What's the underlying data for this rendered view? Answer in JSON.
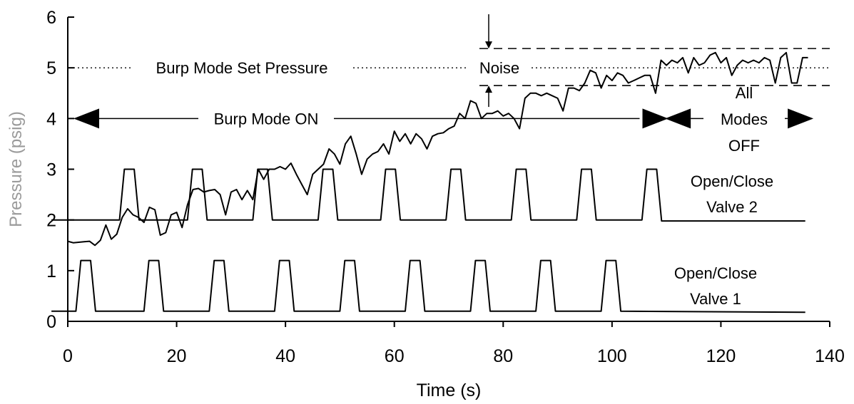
{
  "chart_data": {
    "type": "line",
    "title": "",
    "xlabel": "Time (s)",
    "ylabel": "Pressure (psig)",
    "xlim": [
      0,
      140
    ],
    "ylim": [
      0,
      6
    ],
    "xticks": [
      0,
      20,
      40,
      60,
      80,
      100,
      120,
      140
    ],
    "yticks": [
      0,
      1,
      2,
      3,
      4,
      5,
      6
    ],
    "grid": false,
    "series": [
      {
        "values": [
          [
            0,
            1.58
          ],
          [
            1,
            1.55
          ],
          [
            2,
            1.56
          ],
          [
            3,
            1.57
          ],
          [
            4,
            1.58
          ],
          [
            5,
            1.5
          ],
          [
            6,
            1.6
          ],
          [
            7,
            1.9
          ],
          [
            8,
            1.62
          ],
          [
            9,
            1.72
          ],
          [
            10,
            2.05
          ],
          [
            11,
            2.22
          ],
          [
            12,
            2.1
          ],
          [
            13,
            2.05
          ],
          [
            14,
            1.95
          ],
          [
            15,
            2.25
          ],
          [
            16,
            2.2
          ],
          [
            17,
            1.7
          ],
          [
            18,
            1.75
          ],
          [
            19,
            2.1
          ],
          [
            20,
            2.15
          ],
          [
            21,
            1.85
          ],
          [
            22,
            2.3
          ],
          [
            23,
            2.6
          ],
          [
            24,
            2.62
          ],
          [
            25,
            2.55
          ],
          [
            26,
            2.58
          ],
          [
            27,
            2.6
          ],
          [
            28,
            2.5
          ],
          [
            29,
            2.1
          ],
          [
            30,
            2.55
          ],
          [
            31,
            2.6
          ],
          [
            32,
            2.4
          ],
          [
            33,
            2.58
          ],
          [
            34,
            2.4
          ],
          [
            35,
            3.0
          ],
          [
            36,
            2.8
          ],
          [
            37,
            3.0
          ],
          [
            38,
            3.0
          ],
          [
            39,
            3.05
          ],
          [
            40,
            3.0
          ],
          [
            41,
            3.12
          ],
          [
            42,
            2.9
          ],
          [
            43,
            2.7
          ],
          [
            44,
            2.5
          ],
          [
            45,
            2.9
          ],
          [
            46,
            3.0
          ],
          [
            47,
            3.1
          ],
          [
            48,
            3.4
          ],
          [
            49,
            3.3
          ],
          [
            50,
            3.1
          ],
          [
            51,
            3.5
          ],
          [
            52,
            3.65
          ],
          [
            53,
            3.3
          ],
          [
            54,
            2.9
          ],
          [
            55,
            3.2
          ],
          [
            56,
            3.3
          ],
          [
            57,
            3.35
          ],
          [
            58,
            3.5
          ],
          [
            59,
            3.3
          ],
          [
            60,
            3.75
          ],
          [
            61,
            3.55
          ],
          [
            62,
            3.7
          ],
          [
            63,
            3.5
          ],
          [
            64,
            3.7
          ],
          [
            65,
            3.6
          ],
          [
            66,
            3.4
          ],
          [
            67,
            3.65
          ],
          [
            68,
            3.7
          ],
          [
            69,
            3.72
          ],
          [
            70,
            3.8
          ],
          [
            71,
            3.85
          ],
          [
            72,
            4.1
          ],
          [
            73,
            4.0
          ],
          [
            74,
            4.35
          ],
          [
            75,
            4.3
          ],
          [
            76,
            4.0
          ],
          [
            77,
            4.1
          ],
          [
            78,
            4.1
          ],
          [
            79,
            4.15
          ],
          [
            80,
            4.05
          ],
          [
            81,
            4.1
          ],
          [
            82,
            4.0
          ],
          [
            83,
            3.8
          ],
          [
            84,
            4.4
          ],
          [
            85,
            4.5
          ],
          [
            86,
            4.5
          ],
          [
            87,
            4.45
          ],
          [
            88,
            4.5
          ],
          [
            89,
            4.45
          ],
          [
            90,
            4.4
          ],
          [
            91,
            4.15
          ],
          [
            92,
            4.6
          ],
          [
            93,
            4.6
          ],
          [
            94,
            4.55
          ],
          [
            95,
            4.7
          ],
          [
            96,
            4.95
          ],
          [
            97,
            4.9
          ],
          [
            98,
            4.6
          ],
          [
            99,
            4.85
          ],
          [
            100,
            4.75
          ],
          [
            101,
            4.9
          ],
          [
            102,
            4.85
          ],
          [
            103,
            4.7
          ],
          [
            104,
            4.75
          ],
          [
            105,
            4.8
          ],
          [
            106,
            4.85
          ],
          [
            107,
            4.85
          ],
          [
            108,
            4.5
          ],
          [
            109,
            5.15
          ],
          [
            110,
            5.05
          ],
          [
            111,
            5.15
          ],
          [
            112,
            5.1
          ],
          [
            113,
            5.2
          ],
          [
            114,
            4.9
          ],
          [
            115,
            5.2
          ],
          [
            116,
            5.05
          ],
          [
            117,
            5.1
          ],
          [
            118,
            5.25
          ],
          [
            119,
            5.3
          ],
          [
            120,
            5.1
          ],
          [
            121,
            5.2
          ],
          [
            122,
            4.85
          ],
          [
            123,
            5.05
          ],
          [
            124,
            5.15
          ],
          [
            125,
            5.1
          ],
          [
            126,
            5.15
          ],
          [
            127,
            5.1
          ],
          [
            128,
            5.2
          ],
          [
            129,
            5.15
          ],
          [
            130,
            4.7
          ],
          [
            131,
            5.2
          ],
          [
            132,
            5.3
          ],
          [
            133,
            4.7
          ],
          [
            134,
            4.7
          ],
          [
            135,
            5.2
          ],
          [
            136,
            5.2
          ]
        ]
      },
      {
        "values": [
          [
            -3,
            2.0
          ],
          [
            9.5,
            2.0
          ],
          [
            10.4,
            3.0
          ],
          [
            12.2,
            3.0
          ],
          [
            13.1,
            2.0
          ],
          [
            22.0,
            2.0
          ],
          [
            22.9,
            3.0
          ],
          [
            24.7,
            3.0
          ],
          [
            25.6,
            2.0
          ],
          [
            34.0,
            2.0
          ],
          [
            34.9,
            3.0
          ],
          [
            36.7,
            3.0
          ],
          [
            37.6,
            2.0
          ],
          [
            46.0,
            2.0
          ],
          [
            46.9,
            3.0
          ],
          [
            48.7,
            3.0
          ],
          [
            49.6,
            2.0
          ],
          [
            57.5,
            2.0
          ],
          [
            58.4,
            3.0
          ],
          [
            60.2,
            3.0
          ],
          [
            61.1,
            2.0
          ],
          [
            69.5,
            2.0
          ],
          [
            70.4,
            3.0
          ],
          [
            72.2,
            3.0
          ],
          [
            73.1,
            2.0
          ],
          [
            81.5,
            2.0
          ],
          [
            82.4,
            3.0
          ],
          [
            84.2,
            3.0
          ],
          [
            85.1,
            2.0
          ],
          [
            93.5,
            2.0
          ],
          [
            94.4,
            3.0
          ],
          [
            96.2,
            3.0
          ],
          [
            97.1,
            2.0
          ],
          [
            105.5,
            2.0
          ],
          [
            106.4,
            3.0
          ],
          [
            108.2,
            3.0
          ],
          [
            109.1,
            1.98
          ],
          [
            135.5,
            1.98
          ]
        ]
      },
      {
        "values": [
          [
            -3,
            0.2
          ],
          [
            1.5,
            0.2
          ],
          [
            2.4,
            1.2
          ],
          [
            4.2,
            1.2
          ],
          [
            5.1,
            0.2
          ],
          [
            14.0,
            0.2
          ],
          [
            14.9,
            1.2
          ],
          [
            16.7,
            1.2
          ],
          [
            17.6,
            0.2
          ],
          [
            26.0,
            0.2
          ],
          [
            26.9,
            1.2
          ],
          [
            28.7,
            1.2
          ],
          [
            29.6,
            0.2
          ],
          [
            38.0,
            0.2
          ],
          [
            38.9,
            1.2
          ],
          [
            40.7,
            1.2
          ],
          [
            41.6,
            0.2
          ],
          [
            50.0,
            0.2
          ],
          [
            50.9,
            1.2
          ],
          [
            52.7,
            1.2
          ],
          [
            53.6,
            0.2
          ],
          [
            62.0,
            0.2
          ],
          [
            62.9,
            1.2
          ],
          [
            64.7,
            1.2
          ],
          [
            65.6,
            0.2
          ],
          [
            74.0,
            0.2
          ],
          [
            74.9,
            1.2
          ],
          [
            76.7,
            1.2
          ],
          [
            77.6,
            0.2
          ],
          [
            86.0,
            0.2
          ],
          [
            86.9,
            1.2
          ],
          [
            88.7,
            1.2
          ],
          [
            89.6,
            0.2
          ],
          [
            98.0,
            0.2
          ],
          [
            98.9,
            1.2
          ],
          [
            100.7,
            1.2
          ],
          [
            101.6,
            0.2
          ],
          [
            135.5,
            0.18
          ]
        ]
      }
    ],
    "annotations": {
      "set_pressure": {
        "label": "Burp Mode Set Pressure",
        "y": 5.0
      },
      "noise": {
        "label": "Noise",
        "upper": 5.38,
        "lower": 4.65
      },
      "burp_on": {
        "label": "Burp Mode ON",
        "y": 4.0,
        "from": 0,
        "to": 109
      },
      "all_off": {
        "label_lines": [
          "All",
          "Modes",
          "OFF"
        ],
        "y": 4.0,
        "from": 110,
        "to": 137
      },
      "valve2": {
        "label_lines": [
          "Open/Close",
          "Valve 2"
        ]
      },
      "valve1": {
        "label_lines": [
          "Open/Close",
          "Valve 1"
        ]
      }
    }
  }
}
